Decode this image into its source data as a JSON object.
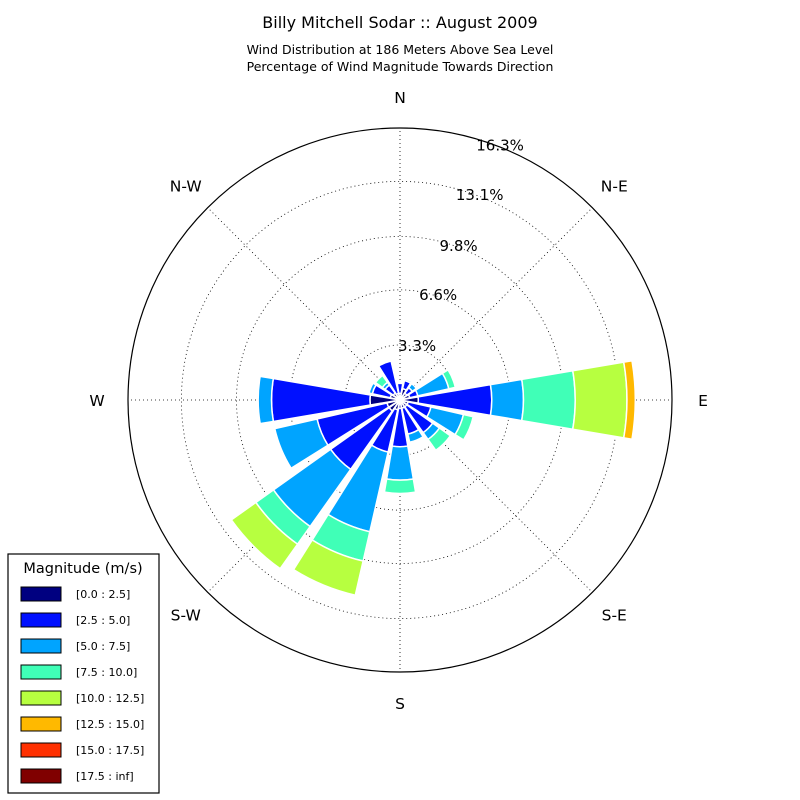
{
  "chart_data": {
    "type": "windrose",
    "title": "Billy Mitchell Sodar :: August 2009",
    "subtitle_lines": [
      "Wind Distribution at 186 Meters Above Sea Level",
      "Percentage of Wind Magnitude Towards Direction"
    ],
    "radial_max": 16.3,
    "radial_ticks": [
      3.3,
      6.6,
      9.8,
      13.1,
      16.3
    ],
    "radial_tick_labels": [
      "3.3%",
      "6.6%",
      "9.8%",
      "13.1%",
      "16.3%"
    ],
    "direction_labels": [
      {
        "label": "N",
        "angle": 0
      },
      {
        "label": "N-E",
        "angle": 45
      },
      {
        "label": "E",
        "angle": 90
      },
      {
        "label": "S-E",
        "angle": 135
      },
      {
        "label": "S",
        "angle": 180
      },
      {
        "label": "S-W",
        "angle": 225
      },
      {
        "label": "W",
        "angle": 270
      },
      {
        "label": "N-W",
        "angle": 315
      }
    ],
    "sector_count": 16,
    "sector_angles": [
      0,
      22.5,
      45,
      67.5,
      90,
      112.5,
      135,
      157.5,
      180,
      202.5,
      225,
      247.5,
      270,
      292.5,
      315,
      337.5
    ],
    "series": [
      {
        "name": "[0.0 : 2.5]",
        "color": "#000080",
        "values": [
          0.4,
          0.7,
          0.5,
          0.6,
          1.1,
          0.5,
          0.5,
          0.5,
          0.5,
          0.6,
          0.8,
          0.8,
          1.8,
          0.6,
          0.5,
          0.4
        ]
      },
      {
        "name": "[2.5 : 5.0]",
        "color": "#0010ff",
        "values": [
          0.6,
          0.5,
          0.4,
          0.5,
          4.4,
          1.4,
          1.9,
          1.6,
          2.3,
          2.6,
          4.3,
          4.3,
          5.9,
          1.1,
          0.6,
          2.0
        ]
      },
      {
        "name": "[5.0 : 7.5]",
        "color": "#00a4ff",
        "values": [
          0,
          0.1,
          0.3,
          1.9,
          1.9,
          2.0,
          0.5,
          0.5,
          2.0,
          4.9,
          4.2,
          2.6,
          0.8,
          0.2,
          0.2,
          0
        ]
      },
      {
        "name": "[7.5 : 10.0]",
        "color": "#40ffb7",
        "values": [
          0,
          0,
          0,
          0.4,
          3.1,
          0.6,
          0.8,
          0,
          0.8,
          1.8,
          1.3,
          0,
          0,
          0,
          0.5,
          0
        ]
      },
      {
        "name": "[10.0 : 12.5]",
        "color": "#b7ff40",
        "values": [
          0,
          0,
          0,
          0,
          3.1,
          0,
          0,
          0,
          0,
          2.1,
          1.8,
          0,
          0,
          0,
          0,
          0
        ]
      },
      {
        "name": "[12.5 : 15.0]",
        "color": "#ffb900",
        "values": [
          0,
          0,
          0,
          0,
          0.5,
          0,
          0,
          0,
          0,
          0,
          0,
          0,
          0,
          0,
          0,
          0
        ]
      },
      {
        "name": "[15.0 : 17.5]",
        "color": "#ff3000",
        "values": [
          0,
          0,
          0,
          0,
          0,
          0,
          0,
          0,
          0,
          0,
          0,
          0,
          0,
          0,
          0,
          0
        ]
      },
      {
        "name": "[17.5 : inf]",
        "color": "#800000",
        "values": [
          0,
          0,
          0,
          0,
          0,
          0,
          0,
          0,
          0,
          0,
          0,
          0,
          0,
          0,
          0,
          0
        ]
      }
    ],
    "legend": {
      "title": "Magnitude (m/s)",
      "placement": "bottom-left"
    },
    "grid": true
  }
}
